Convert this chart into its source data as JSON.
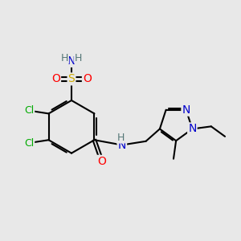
{
  "background_color": "#e8e8e8",
  "atom_colors": {
    "C": "#000000",
    "N": "#0000cc",
    "O": "#ff0000",
    "S": "#ccaa00",
    "Cl": "#00aa00",
    "H": "#557777"
  },
  "figsize": [
    3.0,
    3.0
  ],
  "dpi": 100,
  "xlim": [
    0.5,
    10.0
  ],
  "ylim": [
    1.0,
    9.5
  ]
}
